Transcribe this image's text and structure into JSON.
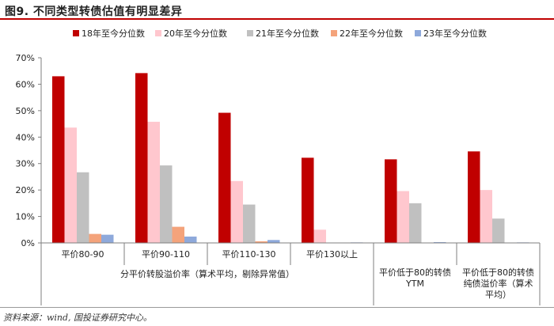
{
  "title": "图9. 不同类型转债估值有明显差异",
  "source": "资料来源：wind, 国投证券研究中心。",
  "chart_data": {
    "type": "bar",
    "title": "",
    "xlabel": "",
    "ylabel": "",
    "ylim": [
      0,
      70
    ],
    "ytick_labels": [
      "0%",
      "10%",
      "20%",
      "30%",
      "40%",
      "50%",
      "60%",
      "70%"
    ],
    "ytick_values": [
      0,
      10,
      20,
      30,
      40,
      50,
      60,
      70
    ],
    "grid": false,
    "legend_position": "top",
    "categories": [
      "平价80-90",
      "平价90-110",
      "平价110-130",
      "平价130以上",
      "平价低于80的转债YTM",
      "平价低于80的转债纯债溢价率（算术平均）"
    ],
    "category_lines": [
      [
        "平价80-90"
      ],
      [
        "平价90-110"
      ],
      [
        "平价110-130"
      ],
      [
        "平价130以上"
      ],
      [
        "平价低于80的转债",
        "YTM"
      ],
      [
        "平价低于80的转债",
        "纯债溢价率（算术",
        "平均）"
      ]
    ],
    "group_label": "分平价转股溢价率（算术平均，剔除异常值）",
    "series": [
      {
        "name": "18年至今分位数",
        "color": "#c00000",
        "values": [
          63,
          64.2,
          49.2,
          32.2,
          31.6,
          34.6
        ]
      },
      {
        "name": "20年至今分位数",
        "color": "#ffc7ce",
        "values": [
          43.6,
          45.8,
          23.4,
          5,
          19.6,
          20
        ]
      },
      {
        "name": "21年至今分位数",
        "color": "#c0c0c0",
        "values": [
          26.7,
          29.3,
          14.5,
          0,
          15,
          9.2
        ]
      },
      {
        "name": "22年至今分位数",
        "color": "#f4a37b",
        "values": [
          3.4,
          6.1,
          0.6,
          0,
          0,
          0
        ]
      },
      {
        "name": "23年至今分位数",
        "color": "#8ea9db",
        "values": [
          3.1,
          2.4,
          1.1,
          0.2,
          0.3,
          0.2
        ]
      }
    ]
  }
}
